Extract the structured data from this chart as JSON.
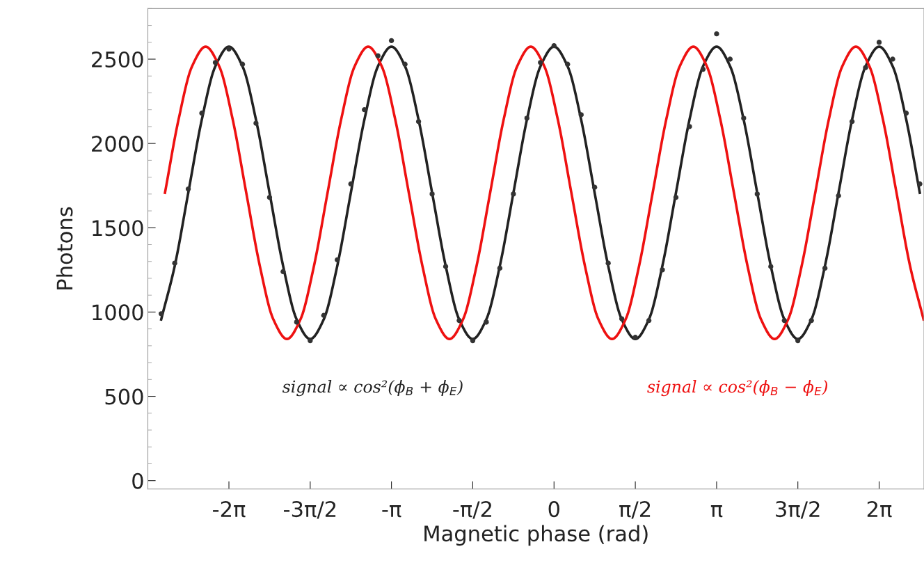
{
  "chart_data": {
    "type": "line",
    "xlabel": "Magnetic phase (rad)",
    "ylabel": "Photons",
    "xlim": [
      -7.85,
      7.15
    ],
    "ylim": [
      -50,
      2800
    ],
    "xticks": [
      {
        "value": -6.283,
        "label": "-2π"
      },
      {
        "value": -4.712,
        "label": "-3π/2"
      },
      {
        "value": -3.142,
        "label": "-π"
      },
      {
        "value": -1.571,
        "label": "-π/2"
      },
      {
        "value": 0,
        "label": "0"
      },
      {
        "value": 1.571,
        "label": "π/2"
      },
      {
        "value": 3.142,
        "label": "π"
      },
      {
        "value": 4.712,
        "label": "3π/2"
      },
      {
        "value": 6.283,
        "label": "2π"
      }
    ],
    "yticks": [
      0,
      500,
      1000,
      1500,
      2000,
      2500
    ],
    "grid": false,
    "legend": false,
    "annotations": [
      "signal ∝ cos²(ϕ$_{B}$ + ϕ$_{E}$)",
      "signal ∝ cos²(ϕ$_{B}$ − ϕ$_{E}$)"
    ],
    "series": [
      {
        "color": "#222222",
        "x": [
          -7.592,
          -7.33,
          -7.069,
          -6.807,
          -6.545,
          -6.283,
          -6.021,
          -5.76,
          -5.498,
          -5.236,
          -4.974,
          -4.712,
          -4.451,
          -4.189,
          -3.927,
          -3.665,
          -3.403,
          -3.142,
          -2.88,
          -2.618,
          -2.356,
          -2.094,
          -1.833,
          -1.571,
          -1.309,
          -1.047,
          -0.785,
          -0.524,
          -0.262,
          0,
          0.262,
          0.524,
          0.785,
          1.047,
          1.309,
          1.571,
          1.833,
          2.094,
          2.356,
          2.618,
          2.88,
          3.142,
          3.403,
          3.665,
          3.927,
          4.189,
          4.451,
          4.712,
          4.974,
          5.236,
          5.498,
          5.76,
          6.021,
          6.283,
          6.545,
          6.807,
          7.069
        ],
        "values": [
          956,
          1274,
          1707,
          2141,
          2458,
          2574,
          2458,
          2141,
          1707,
          1274,
          956,
          840,
          956,
          1274,
          1707,
          2141,
          2458,
          2574,
          2458,
          2141,
          1707,
          1274,
          956,
          840,
          956,
          1274,
          1707,
          2141,
          2458,
          2574,
          2458,
          2141,
          1707,
          1274,
          956,
          840,
          956,
          1274,
          1707,
          2141,
          2458,
          2574,
          2458,
          2141,
          1707,
          1274,
          956,
          840,
          956,
          1274,
          1707,
          2141,
          2458,
          2574,
          2458,
          2141,
          1707
        ]
      },
      {
        "color": "#ee1111",
        "x": [
          -7.519,
          -7.257,
          -6.995,
          -6.733,
          -6.471,
          -6.209,
          -5.948,
          -5.686,
          -5.424,
          -5.162,
          -4.901,
          -4.639,
          -4.377,
          -4.115,
          -3.853,
          -3.592,
          -3.33,
          -3.068,
          -2.806,
          -2.544,
          -2.283,
          -2.021,
          -1.759,
          -1.497,
          -1.235,
          -0.974,
          -0.712,
          -0.45,
          -0.188,
          0.074,
          0.335,
          0.597,
          0.859,
          1.121,
          1.383,
          1.644,
          1.906,
          2.168,
          2.43,
          2.692,
          2.953,
          3.215,
          3.477,
          3.739,
          4.001,
          4.262,
          4.524,
          4.786,
          5.048,
          5.31,
          5.571,
          5.833,
          6.095,
          6.357,
          6.619,
          6.88,
          7.142
        ],
        "values": [
          1707,
          2141,
          2458,
          2574,
          2458,
          2141,
          1707,
          1274,
          956,
          840,
          956,
          1274,
          1707,
          2141,
          2458,
          2574,
          2458,
          2141,
          1707,
          1274,
          956,
          840,
          956,
          1274,
          1707,
          2141,
          2458,
          2574,
          2458,
          2141,
          1707,
          1274,
          956,
          840,
          956,
          1274,
          1707,
          2141,
          2458,
          2574,
          2458,
          2141,
          1707,
          1274,
          956,
          840,
          956,
          1274,
          1707,
          2141,
          2458,
          2574,
          2458,
          2141,
          1707,
          1274,
          956
        ]
      },
      {
        "type": "scatter",
        "color": "#333333",
        "x": [
          -7.592,
          -7.33,
          -7.069,
          -6.807,
          -6.545,
          -6.283,
          -6.021,
          -5.76,
          -5.498,
          -5.236,
          -4.974,
          -4.712,
          -4.451,
          -4.189,
          -3.927,
          -3.665,
          -3.403,
          -3.142,
          -2.88,
          -2.618,
          -2.356,
          -2.094,
          -1.833,
          -1.571,
          -1.309,
          -1.047,
          -0.785,
          -0.524,
          -0.262,
          0,
          0.262,
          0.524,
          0.785,
          1.047,
          1.309,
          1.571,
          1.833,
          2.094,
          2.356,
          2.618,
          2.88,
          3.142,
          3.403,
          3.665,
          3.927,
          4.189,
          4.451,
          4.712,
          4.974,
          5.236,
          5.498,
          5.76,
          6.021,
          6.283,
          6.545,
          6.807,
          7.069
        ],
        "values": [
          990,
          1290,
          1730,
          2180,
          2480,
          2560,
          2470,
          2120,
          1680,
          1240,
          940,
          830,
          980,
          1310,
          1760,
          2200,
          2520,
          2610,
          2470,
          2130,
          1700,
          1270,
          950,
          830,
          940,
          1260,
          1700,
          2150,
          2480,
          2580,
          2470,
          2170,
          1740,
          1290,
          960,
          850,
          950,
          1250,
          1680,
          2100,
          2440,
          2650,
          2500,
          2150,
          1700,
          1270,
          950,
          830,
          950,
          1260,
          1690,
          2130,
          2450,
          2600,
          2500,
          2180,
          1760
        ]
      }
    ]
  }
}
